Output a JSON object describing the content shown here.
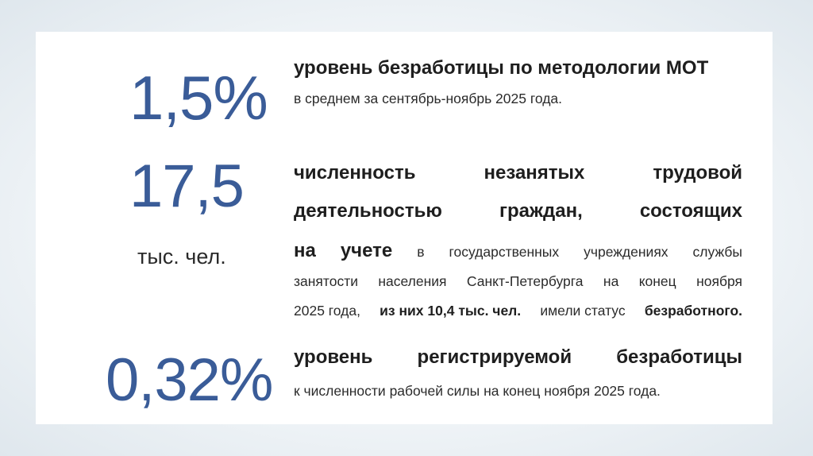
{
  "stat1": {
    "value": "1,5%",
    "title": "уровень безработицы по методологии МОТ",
    "subtitle": "в среднем за сентябрь-ноябрь 2025 года."
  },
  "stat2": {
    "value": "17,5",
    "unit": "тыс. чел.",
    "line1": [
      "численность",
      "незанятых",
      "трудовой"
    ],
    "line2": [
      "деятельностью",
      "граждан,",
      "состоящих"
    ],
    "line3_bold": [
      "на",
      "учете"
    ],
    "line3_rest": [
      "в",
      "государственных",
      "учреждениях",
      "службы"
    ],
    "line4": [
      "занятости",
      "населения",
      "Санкт-Петербурга",
      "на",
      "конец",
      "ноября"
    ],
    "line5": {
      "year": "2025 года,",
      "bold1": "из них 10,4 тыс. чел.",
      "mid": "имели статус",
      "bold2": "безработного."
    }
  },
  "stat3": {
    "value": "0,32%",
    "title_words": [
      "уровень",
      "регистрируемой",
      "безработицы"
    ],
    "subtitle": "к численности рабочей силы на конец ноября 2025 года."
  },
  "colors": {
    "accent": "#3a5c98",
    "text": "#1e1e1e",
    "background": "#ffffff"
  }
}
